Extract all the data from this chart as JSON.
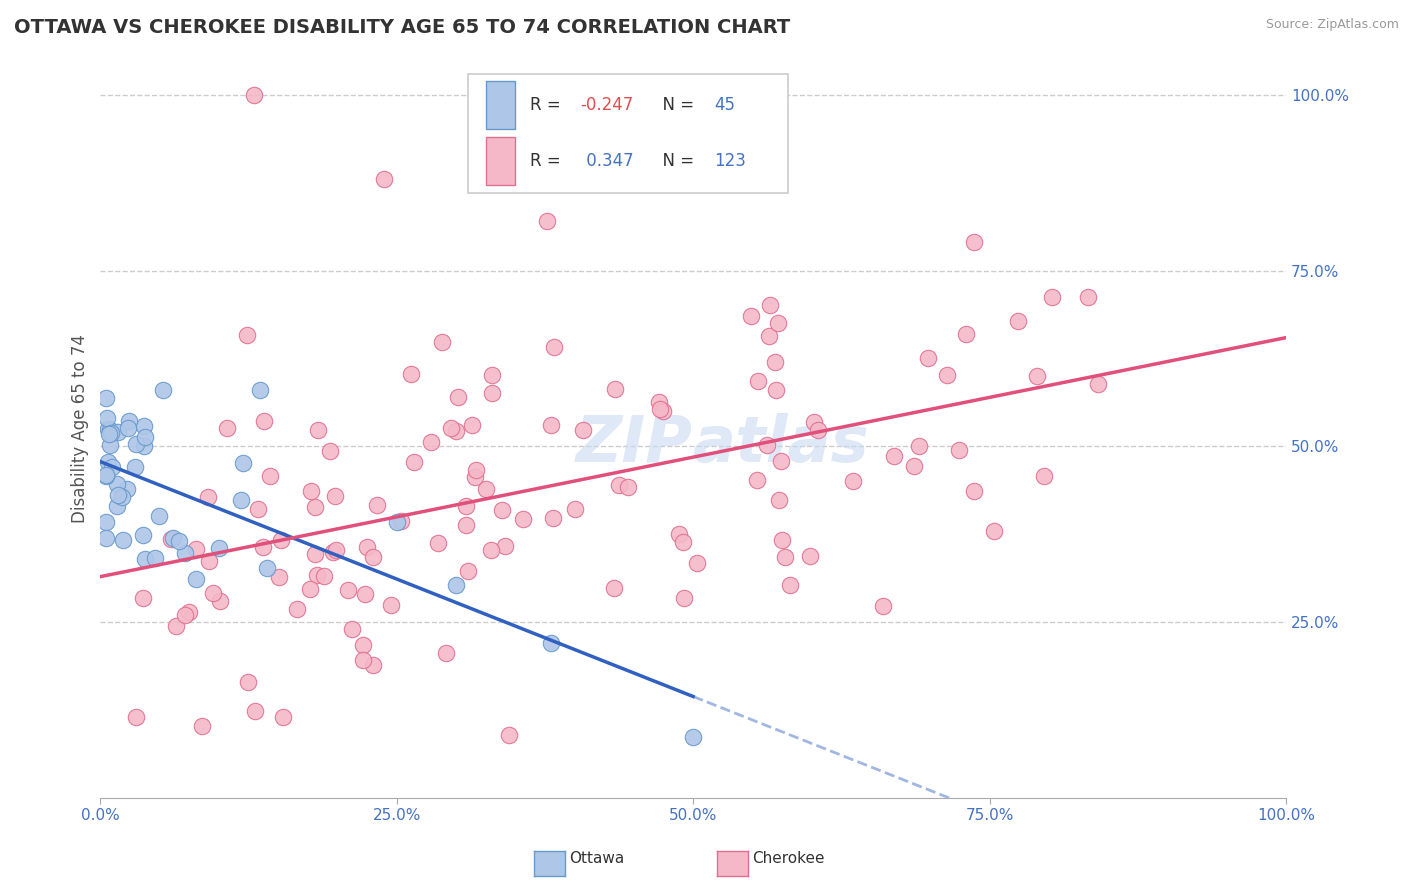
{
  "title": "OTTAWA VS CHEROKEE DISABILITY AGE 65 TO 74 CORRELATION CHART",
  "source": "Source: ZipAtlas.com",
  "ylabel": "Disability Age 65 to 74",
  "xlim": [
    0.0,
    1.0
  ],
  "ylim": [
    0.0,
    1.05
  ],
  "ottawa_color": "#aec6e8",
  "cherokee_color": "#f4b8c8",
  "ottawa_edge": "#6699cc",
  "cherokee_edge": "#e07090",
  "line_ottawa_color": "#3060c0",
  "line_cherokee_color": "#e0507a",
  "legend_ottawa_R": "-0.247",
  "legend_ottawa_N": "45",
  "legend_cherokee_R": "0.347",
  "legend_cherokee_N": "123",
  "watermark": "ZIPatlas",
  "background_color": "#ffffff",
  "grid_color": "#cccccc",
  "ottawa_seed": 42,
  "cherokee_seed": 99
}
